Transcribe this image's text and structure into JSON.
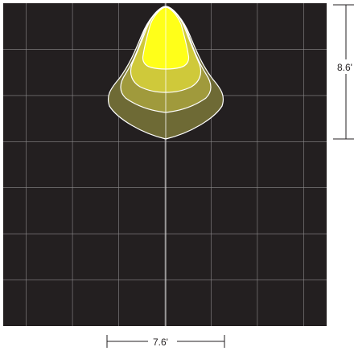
{
  "diagram": {
    "background_color": "#231f20",
    "grid_color": "#8c8a8b",
    "contour_stroke_color": "#ffffff",
    "contour_fill_colors": [
      "#6e6a35",
      "#a09a3c",
      "#cfc93a",
      "#ffff19"
    ],
    "grid_columns": 7,
    "grid_rows": 7,
    "dimensions": {
      "vertical_label": "8.6'",
      "horizontal_label": "7.6'"
    }
  }
}
